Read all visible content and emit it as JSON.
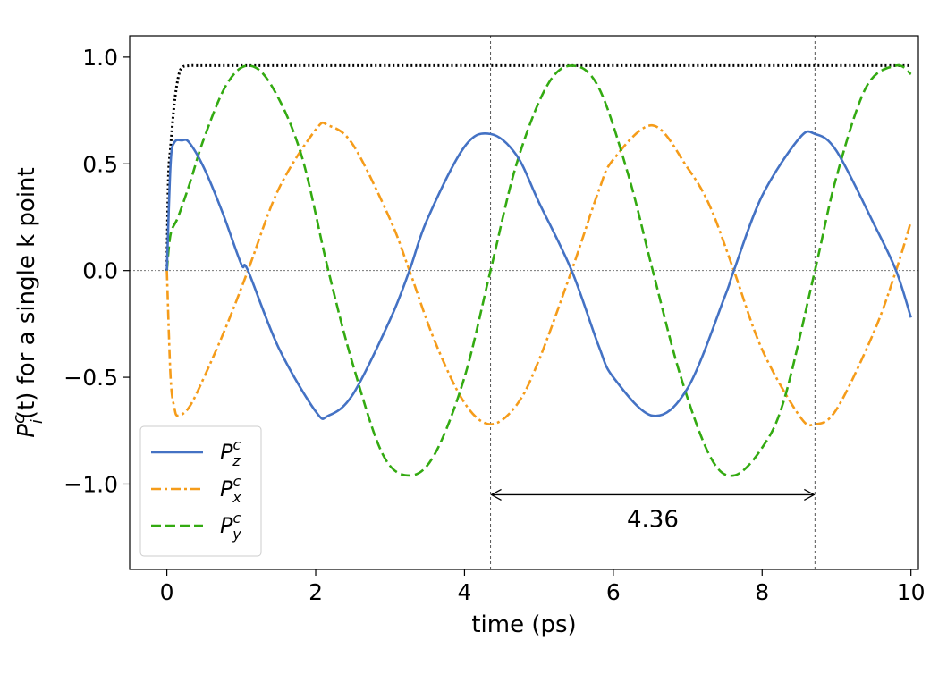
{
  "chart_data": {
    "type": "line",
    "xlabel": "time (ps)",
    "ylabel": {
      "base": "P",
      "sup": "c",
      "sub": "i",
      "rest": "(t) for a single k point"
    },
    "xlim": [
      -0.5,
      10.1
    ],
    "ylim": [
      -1.4,
      1.1
    ],
    "xticks": [
      0,
      2,
      4,
      6,
      8,
      10
    ],
    "xtick_labels": [
      "0",
      "2",
      "4",
      "6",
      "8",
      "10"
    ],
    "yticks": [
      1.0,
      0.5,
      0.0,
      -0.5,
      -1.0
    ],
    "ytick_labels": [
      "1.0",
      "0.5",
      "0.0",
      "−0.5",
      "−1.0"
    ],
    "grid": false,
    "legend_position": "lower-left",
    "period_marker": {
      "x_start": 4.35,
      "x_end": 8.71,
      "y": -1.05,
      "label": "4.36"
    },
    "reference_lines": {
      "horizontal_y": 0.0,
      "vertical_x": [
        4.35,
        8.71
      ]
    },
    "series": [
      {
        "key": "pz",
        "legend": {
          "base": "P",
          "sup": "c",
          "sub": "z"
        },
        "color": "#4472c4",
        "style": "solid",
        "x": [
          0,
          0.05,
          0.1,
          0.2,
          0.3,
          0.5,
          0.75,
          1.0,
          1.09,
          1.5,
          2.0,
          2.17,
          2.5,
          3.0,
          3.26,
          3.5,
          4.0,
          4.35,
          4.7,
          5.0,
          5.44,
          5.8,
          6.0,
          6.53,
          7.0,
          7.5,
          7.62,
          8.0,
          8.5,
          8.71,
          9.0,
          9.5,
          9.8,
          10.0
        ],
        "y": [
          0.0,
          0.5,
          0.6,
          0.61,
          0.6,
          0.48,
          0.27,
          0.03,
          0.0,
          -0.36,
          -0.66,
          -0.68,
          -0.58,
          -0.23,
          0.0,
          0.24,
          0.58,
          0.64,
          0.54,
          0.32,
          0.0,
          -0.35,
          -0.5,
          -0.68,
          -0.55,
          -0.12,
          0.0,
          0.35,
          0.62,
          0.64,
          0.56,
          0.22,
          0.0,
          -0.22
        ]
      },
      {
        "key": "px",
        "legend": {
          "base": "P",
          "sup": "c",
          "sub": "x"
        },
        "color": "#f59c1a",
        "style": "dashdot",
        "x": [
          0,
          0.05,
          0.1,
          0.15,
          0.3,
          0.5,
          0.8,
          1.09,
          1.5,
          2.0,
          2.17,
          2.5,
          3.0,
          3.26,
          3.6,
          4.0,
          4.35,
          4.7,
          5.0,
          5.44,
          5.8,
          6.0,
          6.53,
          7.0,
          7.3,
          7.62,
          8.0,
          8.5,
          8.71,
          9.0,
          9.5,
          9.8,
          10.0
        ],
        "y": [
          0.0,
          -0.5,
          -0.64,
          -0.68,
          -0.64,
          -0.5,
          -0.26,
          0.0,
          0.38,
          0.66,
          0.68,
          0.59,
          0.24,
          0.0,
          -0.33,
          -0.62,
          -0.72,
          -0.63,
          -0.42,
          0.0,
          0.37,
          0.52,
          0.68,
          0.48,
          0.3,
          0.0,
          -0.37,
          -0.68,
          -0.72,
          -0.65,
          -0.29,
          0.0,
          0.23
        ]
      },
      {
        "key": "py",
        "legend": {
          "base": "P",
          "sup": "c",
          "sub": "y"
        },
        "color": "#33aa11",
        "style": "dashed",
        "x": [
          0,
          0.05,
          0.15,
          0.3,
          0.5,
          0.8,
          1.09,
          1.4,
          1.8,
          2.17,
          2.5,
          2.9,
          3.26,
          3.6,
          4.0,
          4.35,
          4.7,
          5.1,
          5.44,
          5.8,
          6.2,
          6.53,
          6.9,
          7.3,
          7.62,
          8.0,
          8.3,
          8.71,
          9.0,
          9.4,
          9.8,
          10.0
        ],
        "y": [
          0.0,
          0.17,
          0.25,
          0.4,
          0.62,
          0.87,
          0.96,
          0.87,
          0.55,
          0.0,
          -0.44,
          -0.86,
          -0.96,
          -0.86,
          -0.5,
          0.0,
          0.5,
          0.86,
          0.96,
          0.86,
          0.45,
          0.0,
          -0.49,
          -0.87,
          -0.96,
          -0.83,
          -0.6,
          0.0,
          0.44,
          0.86,
          0.96,
          0.92
        ]
      },
      {
        "key": "norm",
        "color": "#000000",
        "style": "dotted",
        "x": [
          0,
          0.02,
          0.05,
          0.1,
          0.15,
          0.2,
          0.3,
          0.5,
          1.0,
          2.0,
          4.0,
          6.0,
          8.0,
          10.0
        ],
        "y": [
          0.0,
          0.43,
          0.58,
          0.78,
          0.9,
          0.95,
          0.96,
          0.96,
          0.96,
          0.96,
          0.96,
          0.96,
          0.96,
          0.96
        ]
      }
    ]
  }
}
